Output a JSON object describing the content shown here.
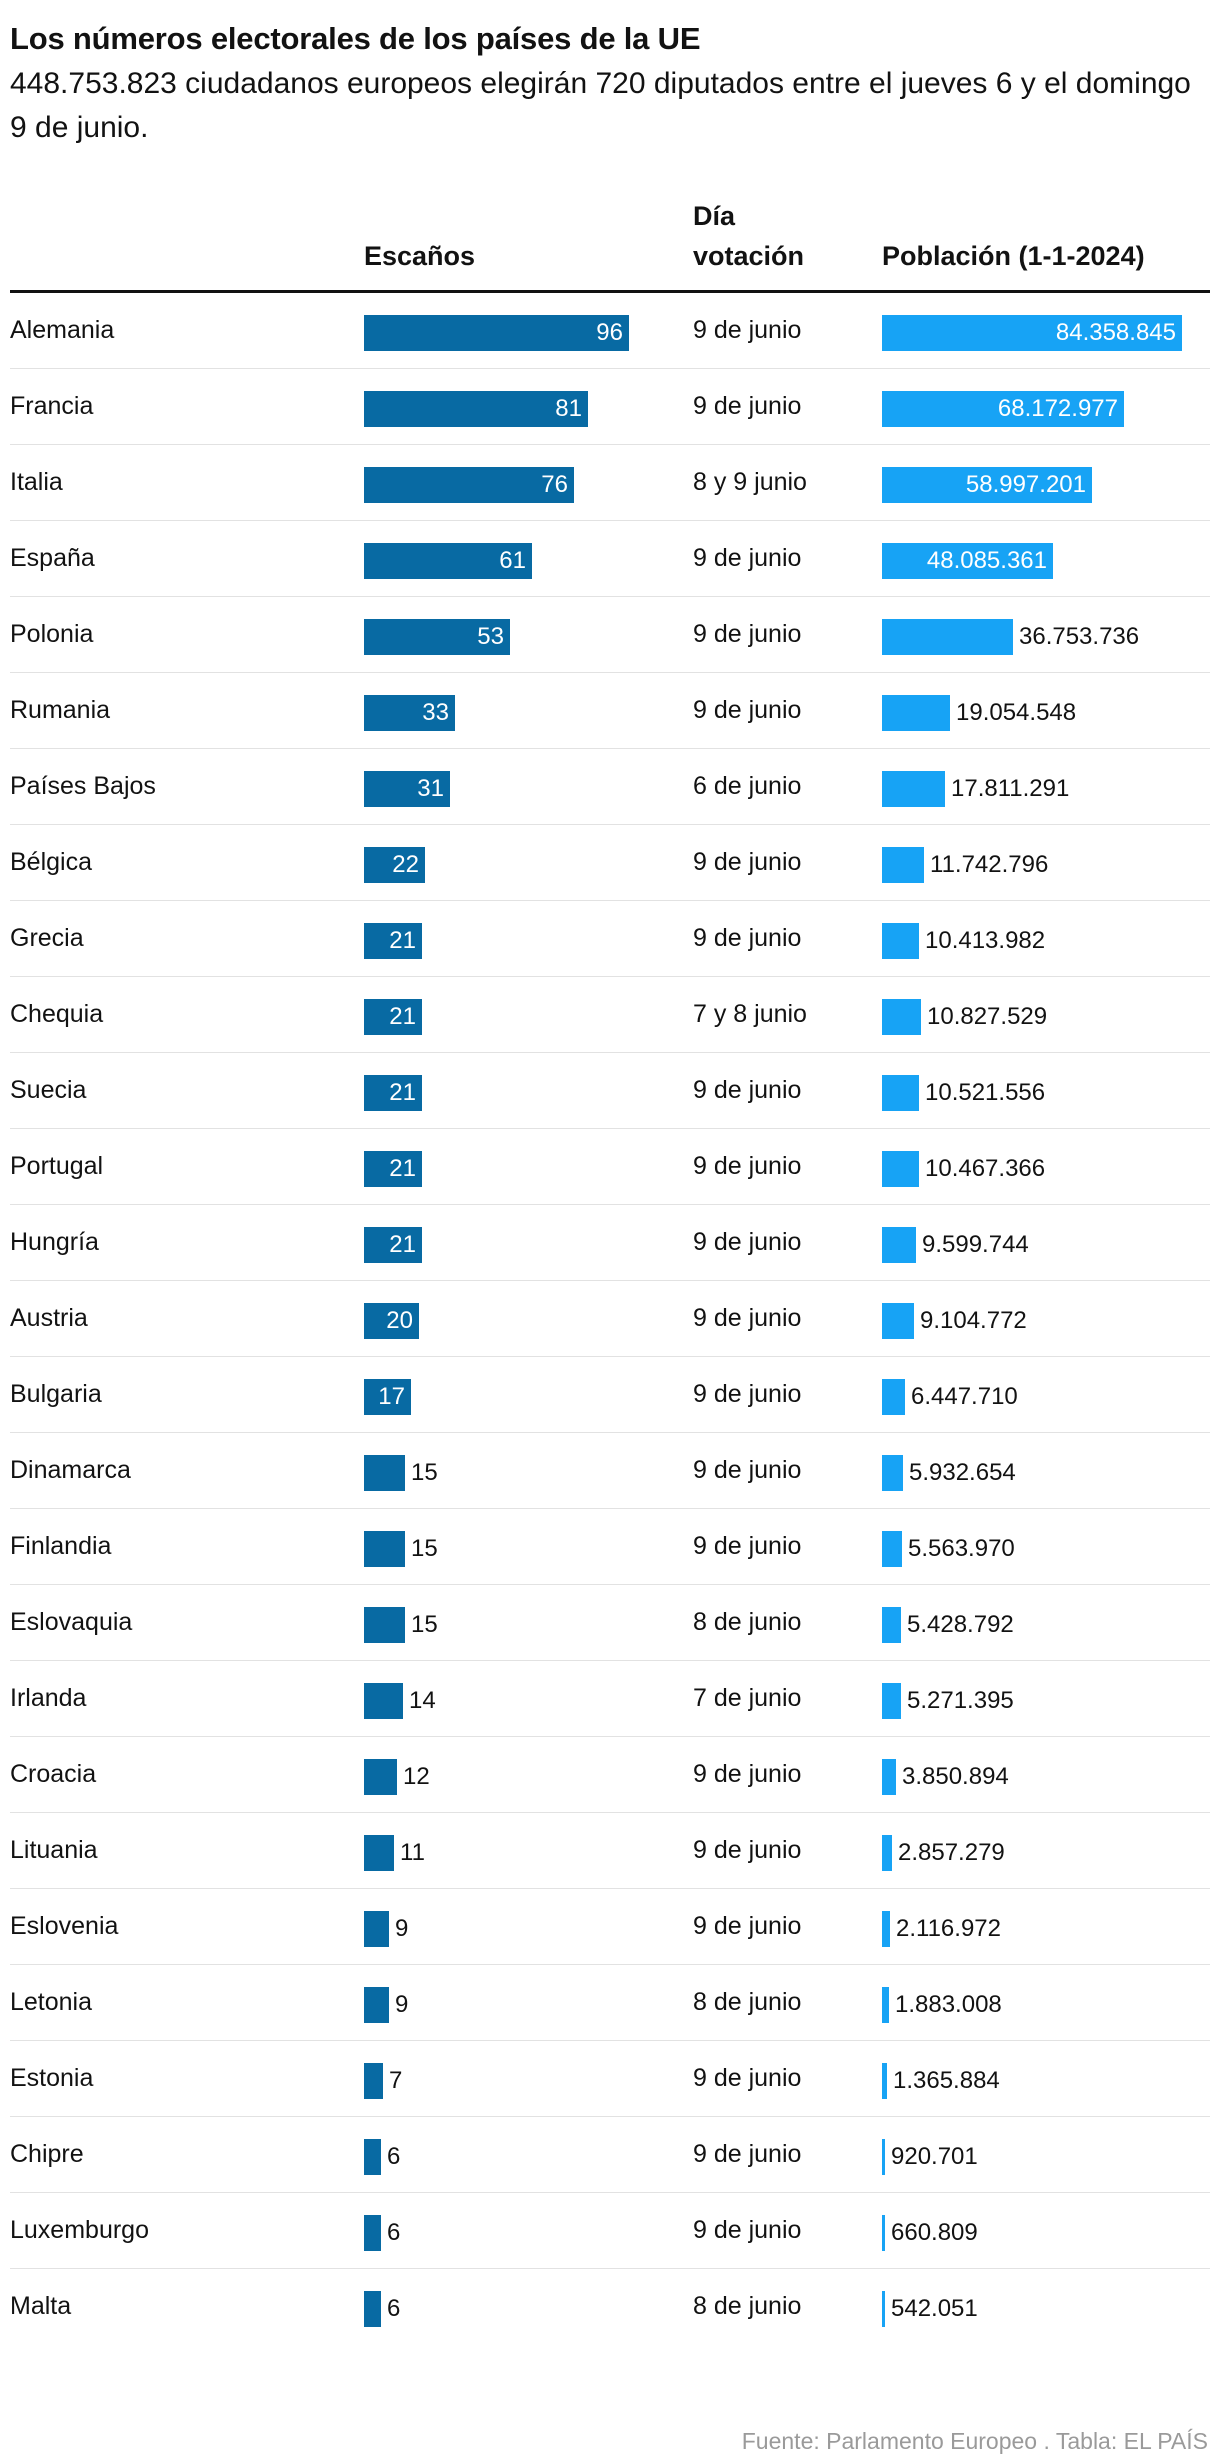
{
  "title": "Los números electorales de los países de la UE",
  "subtitle": "448.753.823 ciudadanos europeos elegirán 720 diputados entre el jueves 6 y el domingo 9 de junio.",
  "footer": "Fuente: Parlamento Europeo . Tabla: EL PAÍS",
  "colors": {
    "seats_bar": "#086aa3",
    "population_bar": "#17a3f5"
  },
  "chart_data": {
    "type": "table",
    "columns": [
      "",
      "Escaños",
      "Día votación",
      "Población (1-1-2024)"
    ],
    "seats_max": 96,
    "population_max": 84358845,
    "rows": [
      {
        "country": "Alemania",
        "seats": 96,
        "day": "9 de junio",
        "population": 84358845,
        "population_label": "84.358.845"
      },
      {
        "country": "Francia",
        "seats": 81,
        "day": "9 de junio",
        "population": 68172977,
        "population_label": "68.172.977"
      },
      {
        "country": "Italia",
        "seats": 76,
        "day": "8 y 9 junio",
        "population": 58997201,
        "population_label": "58.997.201"
      },
      {
        "country": "España",
        "seats": 61,
        "day": "9 de junio",
        "population": 48085361,
        "population_label": "48.085.361"
      },
      {
        "country": "Polonia",
        "seats": 53,
        "day": "9 de junio",
        "population": 36753736,
        "population_label": "36.753.736"
      },
      {
        "country": "Rumania",
        "seats": 33,
        "day": "9 de junio",
        "population": 19054548,
        "population_label": "19.054.548"
      },
      {
        "country": "Países Bajos",
        "seats": 31,
        "day": "6 de junio",
        "population": 17811291,
        "population_label": "17.811.291"
      },
      {
        "country": "Bélgica",
        "seats": 22,
        "day": "9 de junio",
        "population": 11742796,
        "population_label": "11.742.796"
      },
      {
        "country": "Grecia",
        "seats": 21,
        "day": "9 de junio",
        "population": 10413982,
        "population_label": "10.413.982"
      },
      {
        "country": "Chequia",
        "seats": 21,
        "day": "7 y 8 junio",
        "population": 10827529,
        "population_label": "10.827.529"
      },
      {
        "country": "Suecia",
        "seats": 21,
        "day": "9 de junio",
        "population": 10521556,
        "population_label": "10.521.556"
      },
      {
        "country": "Portugal",
        "seats": 21,
        "day": "9 de junio",
        "population": 10467366,
        "population_label": "10.467.366"
      },
      {
        "country": "Hungría",
        "seats": 21,
        "day": "9 de junio",
        "population": 9599744,
        "population_label": "9.599.744"
      },
      {
        "country": "Austria",
        "seats": 20,
        "day": "9 de junio",
        "population": 9104772,
        "population_label": "9.104.772"
      },
      {
        "country": "Bulgaria",
        "seats": 17,
        "day": "9 de junio",
        "population": 6447710,
        "population_label": "6.447.710"
      },
      {
        "country": "Dinamarca",
        "seats": 15,
        "day": "9 de junio",
        "population": 5932654,
        "population_label": "5.932.654"
      },
      {
        "country": "Finlandia",
        "seats": 15,
        "day": "9 de junio",
        "population": 5563970,
        "population_label": "5.563.970"
      },
      {
        "country": "Eslovaquia",
        "seats": 15,
        "day": "8 de junio",
        "population": 5428792,
        "population_label": "5.428.792"
      },
      {
        "country": "Irlanda",
        "seats": 14,
        "day": "7 de junio",
        "population": 5271395,
        "population_label": "5.271.395"
      },
      {
        "country": "Croacia",
        "seats": 12,
        "day": "9 de junio",
        "population": 3850894,
        "population_label": "3.850.894"
      },
      {
        "country": "Lituania",
        "seats": 11,
        "day": "9 de junio",
        "population": 2857279,
        "population_label": "2.857.279"
      },
      {
        "country": "Eslovenia",
        "seats": 9,
        "day": "9 de junio",
        "population": 2116972,
        "population_label": "2.116.972"
      },
      {
        "country": "Letonia",
        "seats": 9,
        "day": "8 de junio",
        "population": 1883008,
        "population_label": "1.883.008"
      },
      {
        "country": "Estonia",
        "seats": 7,
        "day": "9 de junio",
        "population": 1365884,
        "population_label": "1.365.884"
      },
      {
        "country": "Chipre",
        "seats": 6,
        "day": "9 de junio",
        "population": 920701,
        "population_label": "920.701"
      },
      {
        "country": "Luxemburgo",
        "seats": 6,
        "day": "9 de junio",
        "population": 660809,
        "population_label": "660.809"
      },
      {
        "country": "Malta",
        "seats": 6,
        "day": "8 de junio",
        "population": 542051,
        "population_label": "542.051"
      }
    ]
  }
}
